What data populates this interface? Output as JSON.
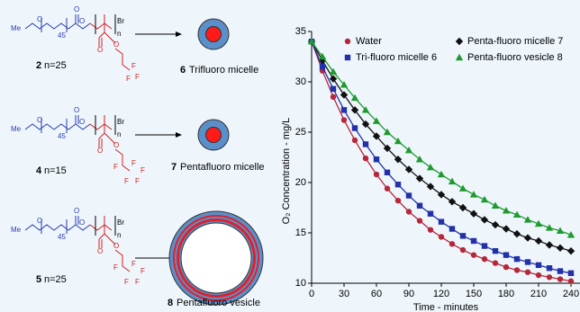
{
  "chart_data": {
    "type": "line",
    "ylabel": "O₂ Concentration - mg/L",
    "xlabel": "Time - minutes",
    "x": [
      0,
      10,
      20,
      30,
      40,
      50,
      60,
      70,
      80,
      90,
      100,
      110,
      120,
      130,
      140,
      150,
      160,
      170,
      180,
      190,
      200,
      210,
      220,
      230,
      240
    ],
    "series": [
      {
        "name": "Water",
        "color": "#b5283a",
        "marker": "circle",
        "values": [
          34.0,
          31.1,
          28.5,
          26.2,
          24.2,
          22.4,
          20.8,
          19.4,
          18.2,
          17.1,
          16.2,
          15.3,
          14.6,
          13.9,
          13.3,
          12.8,
          12.4,
          12.0,
          11.6,
          11.3,
          11.1,
          10.8,
          10.6,
          10.4,
          10.2
        ]
      },
      {
        "name": "Penta-fluoro micelle 7",
        "color": "#111111",
        "marker": "diamond",
        "values": [
          34.0,
          32.1,
          30.3,
          28.7,
          27.2,
          25.8,
          24.6,
          23.4,
          22.3,
          21.3,
          20.4,
          19.6,
          18.8,
          18.1,
          17.5,
          16.9,
          16.3,
          15.8,
          15.4,
          14.9,
          14.5,
          14.2,
          13.8,
          13.5,
          13.2
        ]
      },
      {
        "name": "Tri-fluoro micelle 6",
        "color": "#2231a8",
        "marker": "square",
        "values": [
          34.0,
          31.5,
          29.3,
          27.2,
          25.4,
          23.8,
          22.3,
          21.0,
          19.8,
          18.7,
          17.7,
          16.9,
          16.1,
          15.4,
          14.7,
          14.2,
          13.7,
          13.2,
          12.8,
          12.4,
          12.1,
          11.8,
          11.5,
          11.2,
          11.0
        ]
      },
      {
        "name": "Penta-fluoro vesicle 8",
        "color": "#1e9a2e",
        "marker": "triangle",
        "values": [
          34.0,
          32.5,
          31.0,
          29.7,
          28.4,
          27.2,
          26.1,
          25.0,
          24.1,
          23.2,
          22.3,
          21.5,
          20.8,
          20.1,
          19.4,
          18.8,
          18.3,
          17.7,
          17.2,
          16.8,
          16.3,
          15.9,
          15.5,
          15.2,
          14.8
        ]
      }
    ],
    "xlim": [
      0,
      250
    ],
    "xticks": [
      0,
      30,
      60,
      90,
      120,
      150,
      180,
      210,
      240
    ],
    "ylim": [
      10,
      35
    ],
    "yticks": [
      10,
      15,
      20,
      25,
      30,
      35
    ],
    "legend": "top",
    "grid": false
  },
  "scheme": {
    "methyl": "Me",
    "oxygen": "O",
    "peg_repeat": "45",
    "bromine": "Br",
    "repeat": "n",
    "fluorine": "F",
    "rows": [
      {
        "compound": "2",
        "length": "n=25",
        "product": "6",
        "label": "Trifluoro micelle"
      },
      {
        "compound": "4",
        "length": "n=15",
        "product": "7",
        "label": "Pentafluoro micelle"
      },
      {
        "compound": "5",
        "length": "n=25",
        "product": "8",
        "label": "Pentafluoro vesicle"
      }
    ]
  }
}
